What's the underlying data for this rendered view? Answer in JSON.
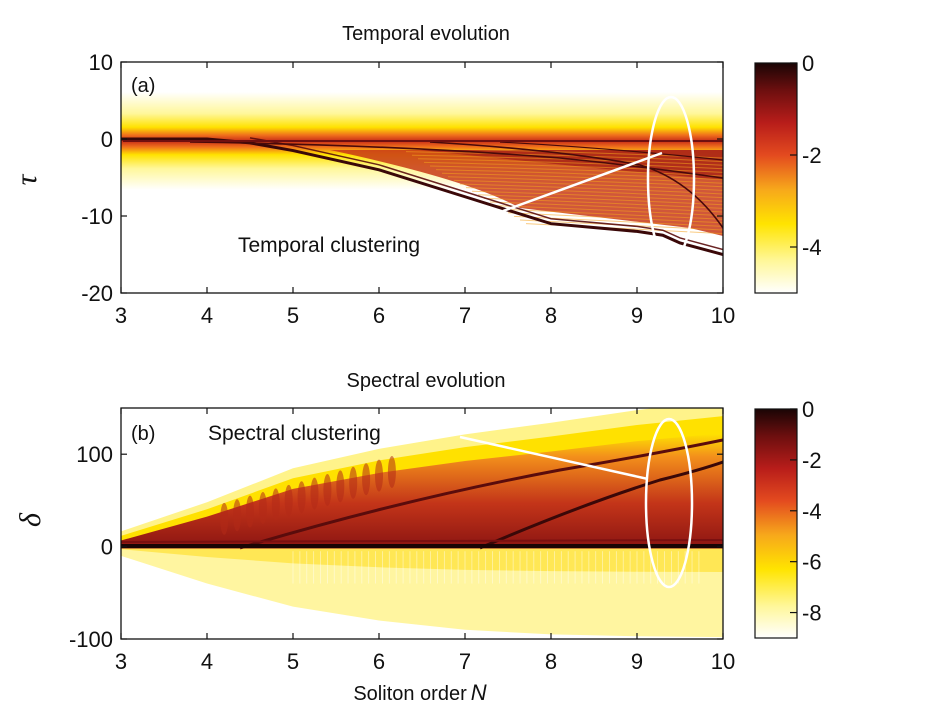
{
  "chart_data": [
    {
      "type": "heatmap",
      "panel_label": "(a)",
      "title": "Temporal evolution",
      "xlabel": "",
      "ylabel": "τ",
      "xlim": [
        3,
        10
      ],
      "ylim": [
        -20,
        10
      ],
      "xticks": [
        "3",
        "4",
        "5",
        "6",
        "7",
        "8",
        "9",
        "10"
      ],
      "yticks": [
        "10",
        "0",
        "-10",
        "-20"
      ],
      "colorbar": {
        "min": -5,
        "max": 0,
        "ticks": [
          "0",
          "-2",
          "-4"
        ],
        "colormap": "hot (inverted)"
      },
      "annotation": "Temporal clustering",
      "features": {
        "band_center": 0,
        "band_halfwidth": 2.5,
        "main_soliton_track": [
          [
            3,
            0
          ],
          [
            4,
            0
          ],
          [
            4.5,
            -0.5
          ],
          [
            5,
            -1.5
          ],
          [
            6,
            -4
          ],
          [
            7,
            -7.5
          ],
          [
            8,
            -11
          ],
          [
            9,
            -12
          ],
          [
            9.3,
            -12.5
          ],
          [
            9.5,
            -13.5
          ],
          [
            10,
            -15
          ]
        ],
        "ellipse_center": [
          9.4,
          -5
        ],
        "ellipse_radii": [
          0.4,
          9.5
        ]
      }
    },
    {
      "type": "heatmap",
      "panel_label": "(b)",
      "title": "Spectral evolution",
      "xlabel": "Soliton order N",
      "ylabel": "δ",
      "xlim": [
        3,
        10
      ],
      "ylim": [
        -100,
        150
      ],
      "xticks": [
        "3",
        "4",
        "5",
        "6",
        "7",
        "8",
        "9",
        "10"
      ],
      "yticks": [
        "100",
        "0",
        "-100"
      ],
      "colorbar": {
        "min": -9,
        "max": 0,
        "ticks": [
          "0",
          "-2",
          "-4",
          "-6",
          "-8"
        ],
        "colormap": "hot (inverted)"
      },
      "annotation": "Spectral clustering",
      "features": {
        "upper_edge": [
          [
            3,
            10
          ],
          [
            4,
            40
          ],
          [
            5,
            75
          ],
          [
            6,
            95
          ],
          [
            7,
            110
          ],
          [
            8,
            122
          ],
          [
            9,
            135
          ],
          [
            10,
            145
          ]
        ],
        "lower_edge": [
          [
            3,
            -10
          ],
          [
            4,
            -40
          ],
          [
            5,
            -65
          ],
          [
            6,
            -80
          ],
          [
            7,
            -90
          ],
          [
            8,
            -95
          ],
          [
            9,
            -97
          ],
          [
            10,
            -98
          ]
        ],
        "ellipse_center": [
          9.4,
          45
        ],
        "ellipse_radii": [
          0.4,
          75
        ]
      }
    }
  ],
  "text": {
    "title_a": "Temporal evolution",
    "title_b": "Spectral evolution",
    "label_a": "(a)",
    "label_b": "(b)",
    "ann_a": "Temporal clustering",
    "ann_b": "Spectral clustering",
    "ylabel_a": "τ",
    "ylabel_b": "δ",
    "xlabel_text": "Soliton order",
    "xlabel_var": "N"
  },
  "colors": {
    "cmap": [
      "#ffffff",
      "#fff799",
      "#ffe400",
      "#f7a81b",
      "#e34a1f",
      "#b81d1a",
      "#6e0f0f",
      "#1a0505"
    ]
  }
}
